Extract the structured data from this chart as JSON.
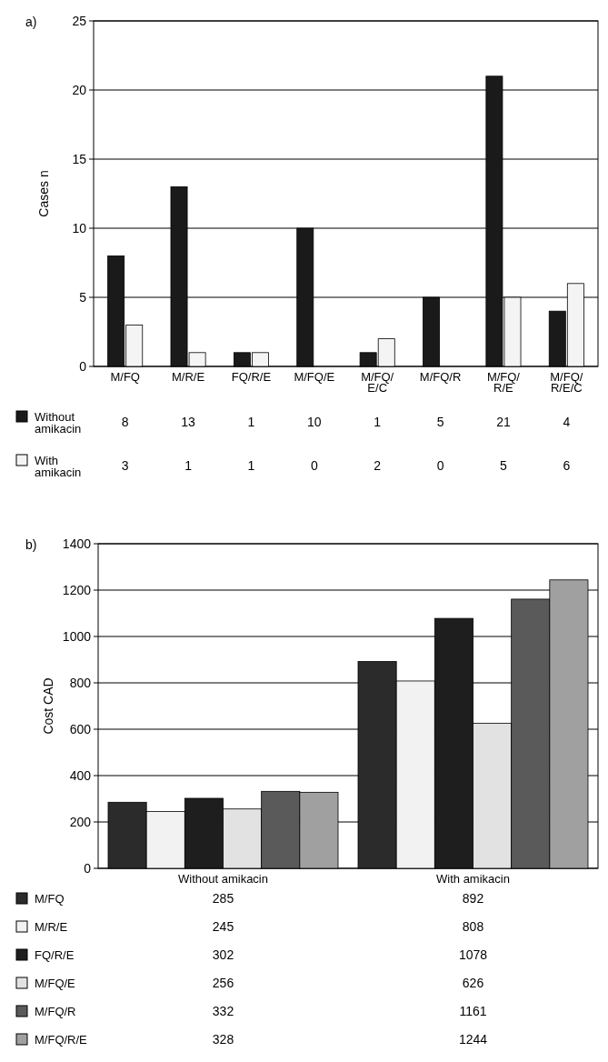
{
  "chart_data": [
    {
      "type": "bar",
      "annotations": [
        "a)"
      ],
      "ylabel": "Cases n",
      "categories": [
        "M/FQ",
        "M/R/E",
        "FQ/R/E",
        "M/FQ/E",
        "M/FQ/E/C",
        "M/FQ/R",
        "M/FQ/R/E",
        "M/FQ/R/E/C"
      ],
      "series": [
        {
          "name": "Without amikacin",
          "color": "#1a1a1a",
          "values": [
            8,
            13,
            1,
            10,
            1,
            5,
            21,
            4
          ]
        },
        {
          "name": "With amikacin",
          "color": "#f4f4f4",
          "values": [
            3,
            1,
            1,
            0,
            2,
            0,
            5,
            6
          ]
        }
      ],
      "ylim": [
        0,
        25
      ],
      "yticks": [
        0,
        5,
        10,
        15,
        20,
        25
      ],
      "grid": "y",
      "legend": "bottom",
      "data_labels": true
    },
    {
      "type": "bar",
      "annotations": [
        "b)"
      ],
      "ylabel": "Cost CAD",
      "categories": [
        "Without amikacin",
        "With amikacin"
      ],
      "series": [
        {
          "name": "M/FQ",
          "color": "#2b2b2b",
          "values": [
            285,
            892
          ]
        },
        {
          "name": "M/R/E",
          "color": "#f2f2f2",
          "values": [
            245,
            808
          ]
        },
        {
          "name": "FQ/R/E",
          "color": "#1e1e1e",
          "values": [
            302,
            1078
          ]
        },
        {
          "name": "M/FQ/E",
          "color": "#e2e2e2",
          "values": [
            256,
            626
          ]
        },
        {
          "name": "M/FQ/R",
          "color": "#5a5a5a",
          "values": [
            332,
            1161
          ]
        },
        {
          "name": "M/FQ/R/E",
          "color": "#a0a0a0",
          "values": [
            328,
            1244
          ]
        }
      ],
      "ylim": [
        0,
        1400
      ],
      "yticks": [
        0,
        200,
        400,
        600,
        800,
        1000,
        1200,
        1400
      ],
      "grid": "y",
      "legend": "bottom",
      "data_labels": true
    }
  ]
}
